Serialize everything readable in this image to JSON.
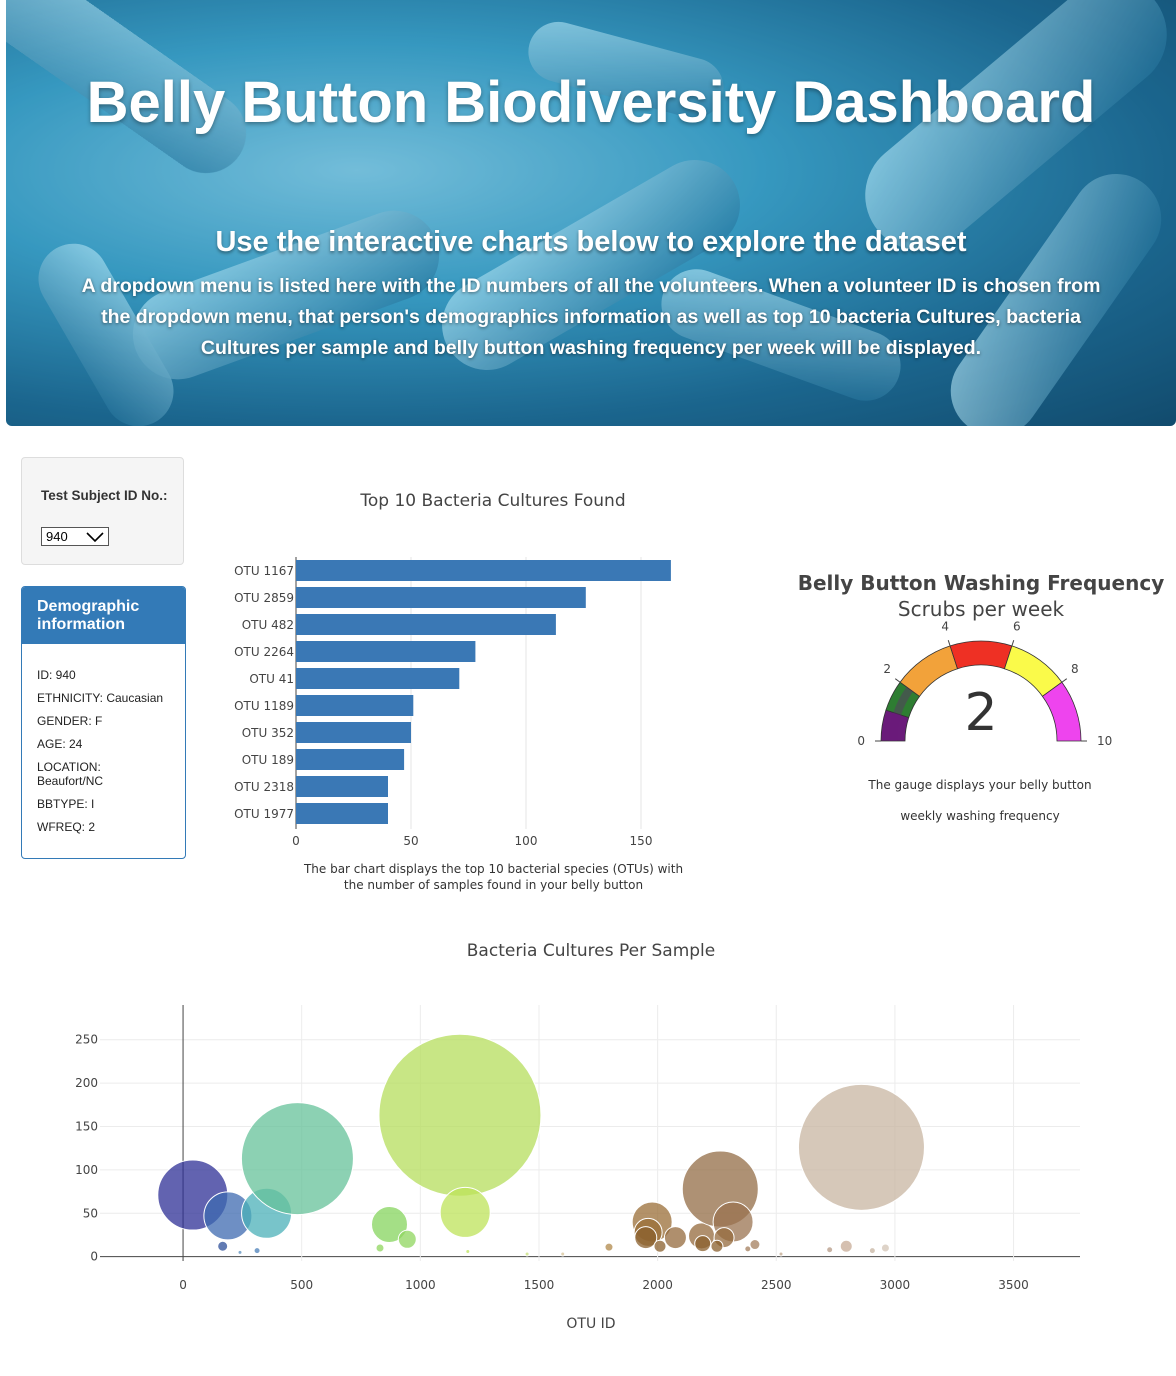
{
  "header": {
    "title": "Belly Button Biodiversity Dashboard",
    "subtitle": "Use the interactive charts below to explore the dataset",
    "description": "A dropdown menu is listed here with the ID numbers of all the volunteers. When a volunteer ID is chosen from the dropdown menu, that person's demographics information as well as top 10 bacteria Cultures, bacteria Cultures per sample and belly button washing frequency per week will be displayed."
  },
  "selector": {
    "label": "Test Subject ID No.:",
    "selected": "940"
  },
  "demographics": {
    "title": "Demographic information",
    "rows": [
      "ID: 940",
      "ETHNICITY: Caucasian",
      "GENDER: F",
      "AGE: 24",
      "LOCATION: Beaufort/NC",
      "BBTYPE: I",
      "WFREQ: 2"
    ]
  },
  "chart_data": [
    {
      "type": "bar",
      "orientation": "horizontal",
      "title": "Top 10 Bacteria Cultures Found",
      "categories": [
        "OTU 1167",
        "OTU 2859",
        "OTU 482",
        "OTU 2264",
        "OTU 41",
        "OTU 1189",
        "OTU 352",
        "OTU 189",
        "OTU 2318",
        "OTU 1977"
      ],
      "values": [
        163,
        126,
        113,
        78,
        71,
        51,
        50,
        47,
        40,
        40
      ],
      "xticks": [
        0,
        50,
        100,
        150
      ],
      "xlim": [
        0,
        170
      ],
      "color": "#3a78b5",
      "caption": "The bar chart displays the top 10 bacterial species (OTUs) with the number of samples found in your belly button"
    },
    {
      "type": "gauge",
      "title": "Belly Button Washing Frequency",
      "subtitle": "Scrubs per week",
      "value": 2,
      "range": [
        0,
        10
      ],
      "ticks": [
        0,
        2,
        4,
        6,
        8,
        10
      ],
      "steps": [
        {
          "range": [
            0,
            1
          ],
          "color": "#6a1b7a"
        },
        {
          "range": [
            1,
            2
          ],
          "color": "#2e7d32"
        },
        {
          "range": [
            2,
            4
          ],
          "color": "#f2a23a"
        },
        {
          "range": [
            4,
            6
          ],
          "color": "#ee3024"
        },
        {
          "range": [
            6,
            8
          ],
          "color": "#fafa4a"
        },
        {
          "range": [
            8,
            10
          ],
          "color": "#ee44ee"
        }
      ],
      "caption_line1": "The gauge displays your belly button",
      "caption_line2": "weekly washing frequency"
    },
    {
      "type": "scatter",
      "subtype": "bubble",
      "title": "Bacteria Cultures Per Sample",
      "xlabel": "OTU ID",
      "ylabel": "",
      "xlim": [
        -350,
        3780
      ],
      "ylim": [
        -5,
        290
      ],
      "xticks": [
        0,
        500,
        1000,
        1500,
        2000,
        2500,
        3000,
        3500
      ],
      "yticks": [
        0,
        50,
        100,
        150,
        200,
        250
      ],
      "points": [
        {
          "x": 41,
          "y": 71,
          "r": 35,
          "color": "#2e2f96"
        },
        {
          "x": 189,
          "y": 47,
          "r": 24,
          "color": "#3d69b0"
        },
        {
          "x": 167,
          "y": 12,
          "r": 5,
          "color": "#2e4f9a"
        },
        {
          "x": 312,
          "y": 7,
          "r": 3,
          "color": "#4a7fb8"
        },
        {
          "x": 352,
          "y": 50,
          "r": 25,
          "color": "#4bb0b8"
        },
        {
          "x": 482,
          "y": 113,
          "r": 56,
          "color": "#66c19a"
        },
        {
          "x": 870,
          "y": 37,
          "r": 18,
          "color": "#86d45e"
        },
        {
          "x": 945,
          "y": 20,
          "r": 9,
          "color": "#8fd65e"
        },
        {
          "x": 830,
          "y": 10,
          "r": 4,
          "color": "#8fd65e"
        },
        {
          "x": 1167,
          "y": 163,
          "r": 81,
          "color": "#b6dd5c"
        },
        {
          "x": 1189,
          "y": 51,
          "r": 25,
          "color": "#bde35a"
        },
        {
          "x": 1200,
          "y": 6,
          "r": 2,
          "color": "#bde35a"
        },
        {
          "x": 1795,
          "y": 11,
          "r": 4,
          "color": "#b0884a"
        },
        {
          "x": 1977,
          "y": 40,
          "r": 20,
          "color": "#9a6e37"
        },
        {
          "x": 1960,
          "y": 28,
          "r": 14,
          "color": "#9a6e37"
        },
        {
          "x": 1950,
          "y": 22,
          "r": 11,
          "color": "#8a5f2c"
        },
        {
          "x": 2010,
          "y": 12,
          "r": 6,
          "color": "#8a5f2c"
        },
        {
          "x": 2075,
          "y": 22,
          "r": 11,
          "color": "#946a3c"
        },
        {
          "x": 2185,
          "y": 24,
          "r": 13,
          "color": "#946a3c"
        },
        {
          "x": 2190,
          "y": 15,
          "r": 8,
          "color": "#8a5f2c"
        },
        {
          "x": 2264,
          "y": 78,
          "r": 38,
          "color": "#936c45"
        },
        {
          "x": 2318,
          "y": 40,
          "r": 20,
          "color": "#9a7350"
        },
        {
          "x": 2280,
          "y": 22,
          "r": 10,
          "color": "#946a3c"
        },
        {
          "x": 2250,
          "y": 12,
          "r": 6,
          "color": "#8a5f2c"
        },
        {
          "x": 2410,
          "y": 14,
          "r": 5,
          "color": "#a37e5c"
        },
        {
          "x": 2380,
          "y": 9,
          "r": 3,
          "color": "#a37e5c"
        },
        {
          "x": 2859,
          "y": 126,
          "r": 63,
          "color": "#c8b5a2"
        },
        {
          "x": 2795,
          "y": 12,
          "r": 6,
          "color": "#c7ab95"
        },
        {
          "x": 2725,
          "y": 8,
          "r": 3,
          "color": "#b59a85"
        },
        {
          "x": 2905,
          "y": 7,
          "r": 3,
          "color": "#c7b4a2"
        },
        {
          "x": 2960,
          "y": 10,
          "r": 4,
          "color": "#d3c4b5"
        },
        {
          "x": 240,
          "y": 5,
          "r": 2,
          "color": "#5b8fbf"
        },
        {
          "x": 1450,
          "y": 3,
          "r": 2,
          "color": "#c8e07a"
        },
        {
          "x": 1600,
          "y": 3,
          "r": 2,
          "color": "#d8c49a"
        },
        {
          "x": 2520,
          "y": 3,
          "r": 2,
          "color": "#c0a78c"
        }
      ]
    }
  ]
}
